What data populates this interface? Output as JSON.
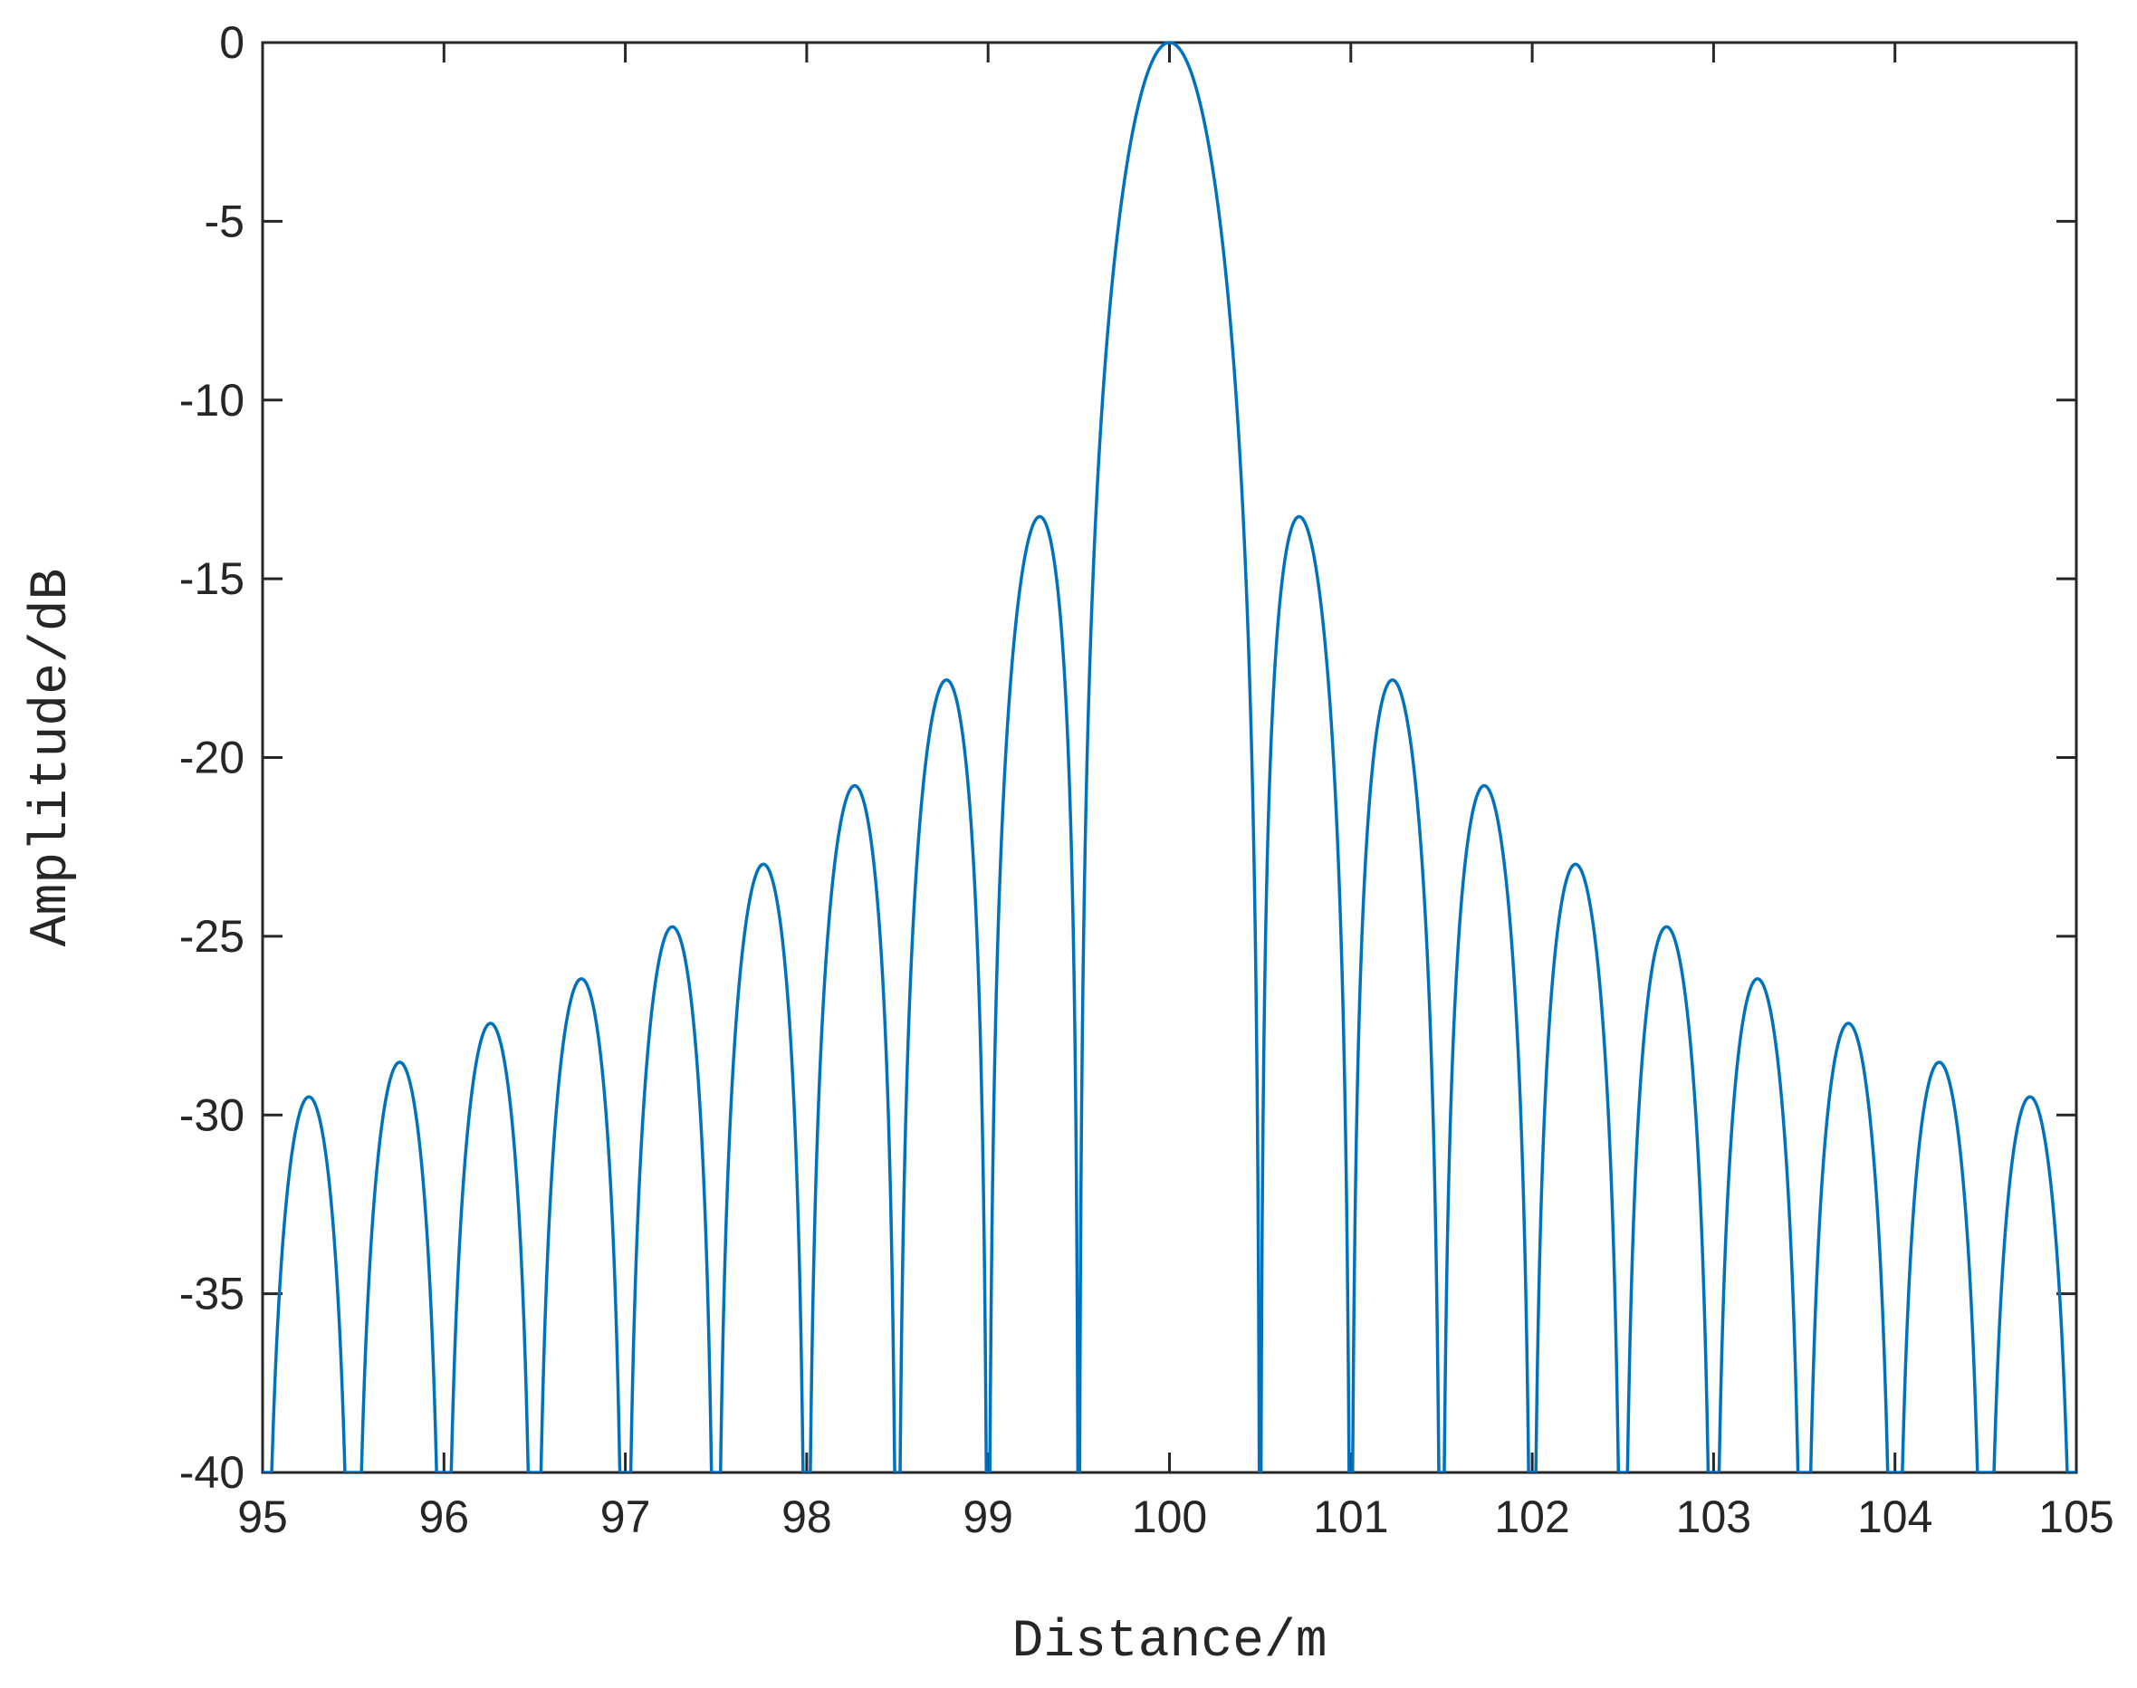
{
  "chart_data": {
    "type": "line",
    "title": "",
    "xlabel": "Distance/m",
    "ylabel": "Amplitude/dB",
    "xlim": [
      95,
      105
    ],
    "ylim": [
      -40,
      0
    ],
    "xticks": [
      95,
      96,
      97,
      98,
      99,
      100,
      101,
      102,
      103,
      104,
      105
    ],
    "xtick_labels": [
      "95",
      "96",
      "97",
      "98",
      "99",
      "100",
      "101",
      "102",
      "103",
      "104",
      "105"
    ],
    "yticks": [
      0,
      -5,
      -10,
      -15,
      -20,
      -25,
      -30,
      -35,
      -40
    ],
    "ytick_labels": [
      "0",
      "-5",
      "-10",
      "-15",
      "-20",
      "-25",
      "-30",
      "-35",
      "-40"
    ],
    "grid": false,
    "legend": "none",
    "series": [
      {
        "color": "#0072BD",
        "function": "sinc",
        "center": 100,
        "null_spacing": 0.5,
        "floor_db": -40,
        "peaks": {
          "x": [
            95.25,
            95.75,
            96.25,
            96.75,
            97.25,
            97.75,
            98.25,
            98.75,
            99.25,
            100,
            100.75,
            101.25,
            101.75,
            102.25,
            102.75,
            103.25,
            103.75,
            104.25,
            104.75
          ],
          "y": [
            -29.5,
            -28.6,
            -27.4,
            -26.2,
            -24.8,
            -23.0,
            -20.8,
            -17.9,
            -13.3,
            0,
            -13.3,
            -17.9,
            -20.8,
            -23.0,
            -24.8,
            -26.2,
            -27.4,
            -28.6,
            -29.5
          ]
        }
      }
    ]
  }
}
